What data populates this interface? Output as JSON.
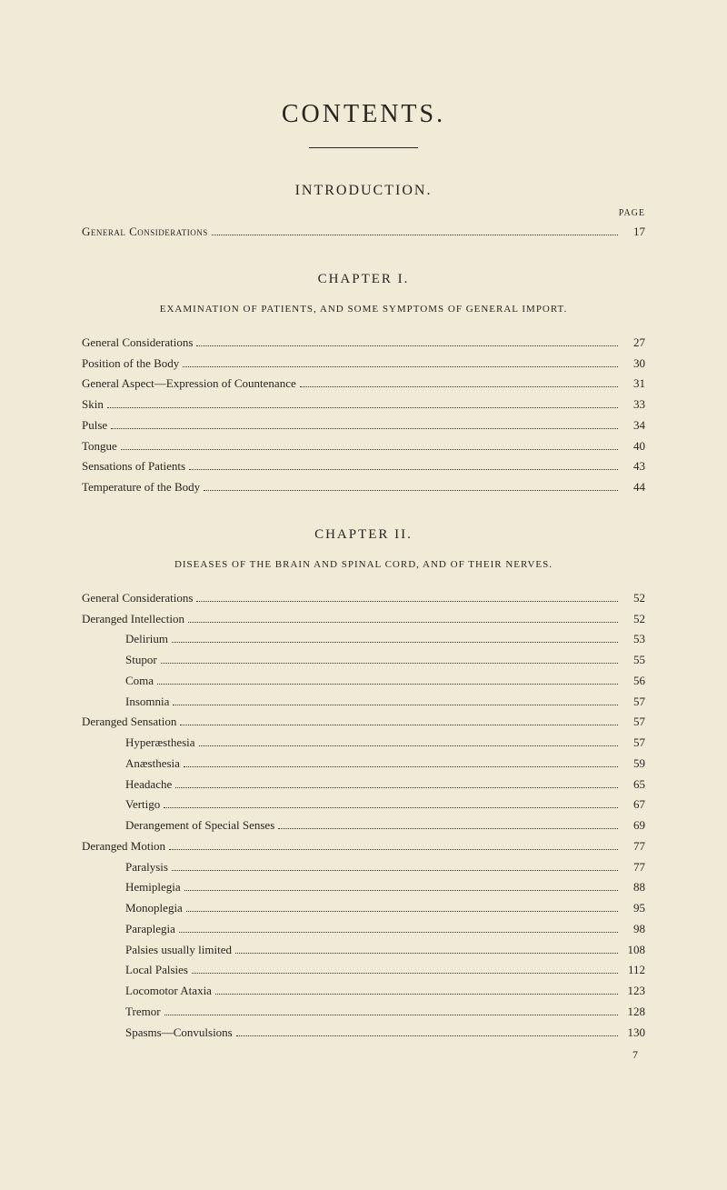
{
  "mainTitle": "CONTENTS.",
  "introduction": {
    "title": "INTRODUCTION.",
    "pageLabel": "PAGE",
    "entries": [
      {
        "label": "General Considerations",
        "page": "17",
        "smallcaps": true
      }
    ]
  },
  "chapter1": {
    "title": "CHAPTER I.",
    "subtitle": "EXAMINATION OF PATIENTS, AND SOME SYMPTOMS OF GENERAL IMPORT.",
    "entries": [
      {
        "label": "General Considerations",
        "page": "27"
      },
      {
        "label": "Position of the Body",
        "page": "30"
      },
      {
        "label": "General Aspect—Expression of Countenance",
        "page": "31"
      },
      {
        "label": "Skin",
        "page": "33"
      },
      {
        "label": "Pulse",
        "page": "34"
      },
      {
        "label": "Tongue",
        "page": "40"
      },
      {
        "label": "Sensations of Patients",
        "page": "43"
      },
      {
        "label": "Temperature of the Body",
        "page": "44"
      }
    ]
  },
  "chapter2": {
    "title": "CHAPTER II.",
    "subtitle": "DISEASES OF THE BRAIN AND SPINAL CORD, AND OF THEIR NERVES.",
    "entries": [
      {
        "label": "General Considerations",
        "page": "52",
        "indent": 0
      },
      {
        "label": "Deranged Intellection",
        "page": "52",
        "indent": 0
      },
      {
        "label": "Delirium",
        "page": "53",
        "indent": 1
      },
      {
        "label": "Stupor",
        "page": "55",
        "indent": 1
      },
      {
        "label": "Coma",
        "page": "56",
        "indent": 1
      },
      {
        "label": "Insomnia",
        "page": "57",
        "indent": 1
      },
      {
        "label": "Deranged Sensation",
        "page": "57",
        "indent": 0
      },
      {
        "label": "Hyperæsthesia",
        "page": "57",
        "indent": 1
      },
      {
        "label": "Anæsthesia",
        "page": "59",
        "indent": 1
      },
      {
        "label": "Headache",
        "page": "65",
        "indent": 1
      },
      {
        "label": "Vertigo",
        "page": "67",
        "indent": 1
      },
      {
        "label": "Derangement of Special Senses",
        "page": "69",
        "indent": 1
      },
      {
        "label": "Deranged Motion",
        "page": "77",
        "indent": 0
      },
      {
        "label": "Paralysis",
        "page": "77",
        "indent": 1
      },
      {
        "label": "Hemiplegia",
        "page": "88",
        "indent": 1
      },
      {
        "label": "Monoplegia",
        "page": "95",
        "indent": 1
      },
      {
        "label": "Paraplegia",
        "page": "98",
        "indent": 1
      },
      {
        "label": "Palsies usually limited",
        "page": "108",
        "indent": 1
      },
      {
        "label": "Local Palsies",
        "page": "112",
        "indent": 1
      },
      {
        "label": "Locomotor Ataxia",
        "page": "123",
        "indent": 1
      },
      {
        "label": "Tremor",
        "page": "128",
        "indent": 1
      },
      {
        "label": "Spasms—Convulsions",
        "page": "130",
        "indent": 1
      }
    ]
  },
  "footerNum": "7"
}
